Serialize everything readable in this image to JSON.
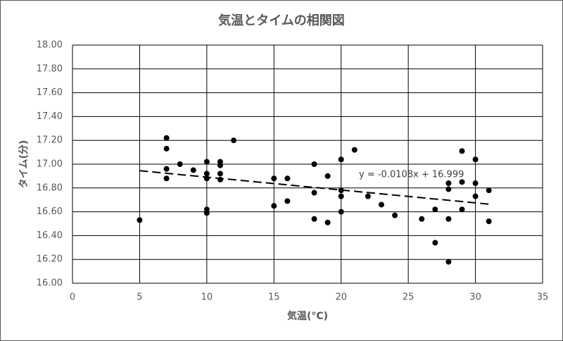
{
  "chart_data": {
    "type": "scatter",
    "title": "気温とタイムの相関図",
    "x_label": "気温(°C)",
    "y_label": "タイム(分)",
    "x": [
      5,
      7,
      7,
      7,
      7,
      8,
      9,
      10,
      10,
      10,
      10,
      10,
      11,
      11,
      11,
      11,
      12,
      15,
      15,
      16,
      16,
      18,
      18,
      18,
      19,
      19,
      20,
      20,
      20,
      20,
      21,
      22,
      23,
      24,
      26,
      27,
      27,
      28,
      28,
      28,
      28,
      29,
      29,
      29,
      30,
      30,
      30,
      31,
      31
    ],
    "values": [
      16.53,
      17.22,
      17.13,
      16.96,
      16.88,
      17.0,
      16.95,
      17.02,
      16.92,
      16.88,
      16.62,
      16.59,
      17.02,
      16.99,
      16.92,
      16.87,
      17.2,
      16.88,
      16.65,
      16.88,
      16.69,
      17.0,
      16.76,
      16.54,
      16.9,
      16.51,
      17.04,
      16.78,
      16.73,
      16.6,
      17.12,
      16.73,
      16.66,
      16.57,
      16.54,
      16.62,
      16.34,
      16.84,
      16.79,
      16.54,
      16.18,
      17.11,
      16.85,
      16.62,
      17.04,
      16.84,
      16.73,
      16.78,
      16.52
    ],
    "color": "#000000",
    "trendline": {
      "label": "y = -0.0108x + 16.999",
      "slope": -0.0108,
      "intercept": 16.999
    },
    "xlim": [
      0,
      35
    ],
    "xticks": [
      0,
      5,
      10,
      15,
      20,
      25,
      30,
      35
    ],
    "ylim": [
      16,
      18
    ],
    "yticks": [
      {
        "value": 16,
        "label": "16.00"
      },
      {
        "value": 16.2,
        "label": "16.20"
      },
      {
        "value": 16.4,
        "label": "16.40"
      },
      {
        "value": 16.6,
        "label": "16.60"
      },
      {
        "value": 16.8,
        "label": "16.80"
      },
      {
        "value": 17,
        "label": "17.00"
      },
      {
        "value": 17.2,
        "label": "17.20"
      },
      {
        "value": 17.4,
        "label": "17.40"
      },
      {
        "value": 17.6,
        "label": "17.60"
      },
      {
        "value": 17.8,
        "label": "17.80"
      },
      {
        "value": 18,
        "label": "18.00"
      }
    ],
    "grid": true
  }
}
